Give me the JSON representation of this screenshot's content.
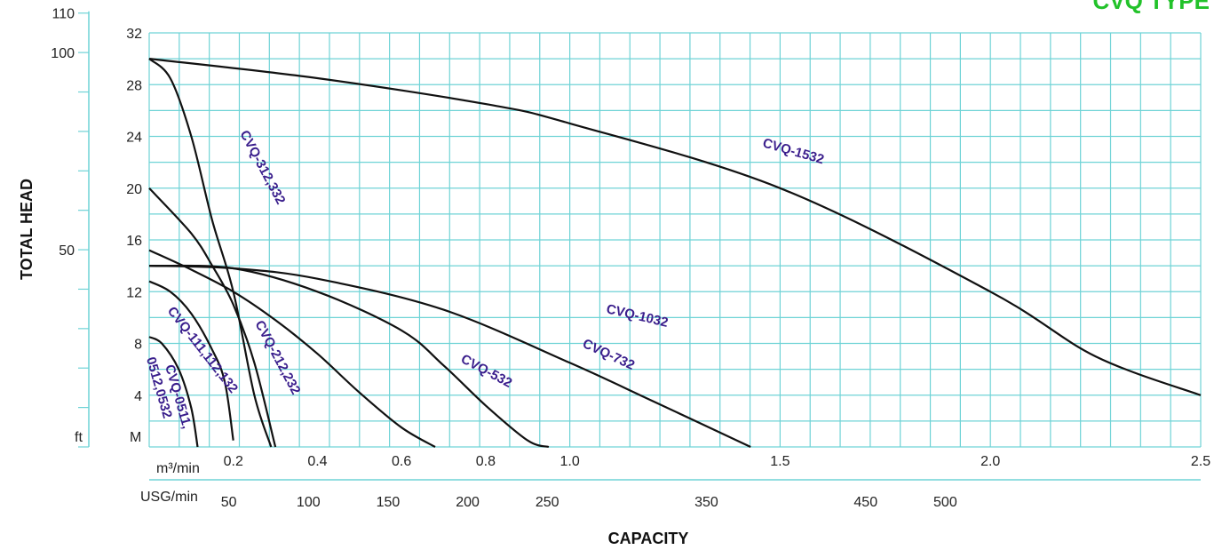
{
  "chart_data": {
    "type": "line",
    "title": "CVQ TYPE",
    "title_color": "#22c22a",
    "grid": true,
    "grid_color": "#6fd3d6",
    "curve_color": "#111111",
    "label_color": "#3a1e8c",
    "ylabel": "TOTAL HEAD",
    "xlabel": "CAPACITY",
    "x_unit_label": "m³/min",
    "x2_unit_label": "USG/min",
    "y_unit_label": "M",
    "y2_unit_label": "ft",
    "xlim": [
      0,
      2.5
    ],
    "ylim": [
      0,
      32
    ],
    "x_ticks": [
      {
        "value": 0.2,
        "label": "0.2"
      },
      {
        "value": 0.4,
        "label": "0.4"
      },
      {
        "value": 0.6,
        "label": "0.6"
      },
      {
        "value": 0.8,
        "label": "0.8"
      },
      {
        "value": 1.0,
        "label": "1.0"
      },
      {
        "value": 1.5,
        "label": "1.5"
      },
      {
        "value": 2.0,
        "label": "2.0"
      },
      {
        "value": 2.5,
        "label": "2.5"
      }
    ],
    "x2_ticks": [
      {
        "value": 50,
        "label": "50"
      },
      {
        "value": 100,
        "label": "100"
      },
      {
        "value": 150,
        "label": "150"
      },
      {
        "value": 200,
        "label": "200"
      },
      {
        "value": 250,
        "label": "250"
      },
      {
        "value": 350,
        "label": "350"
      },
      {
        "value": 450,
        "label": "450"
      },
      {
        "value": 500,
        "label": "500"
      }
    ],
    "y_ticks": [
      {
        "value": 4,
        "label": "4"
      },
      {
        "value": 8,
        "label": "8"
      },
      {
        "value": 12,
        "label": "12"
      },
      {
        "value": 16,
        "label": "16"
      },
      {
        "value": 20,
        "label": "20"
      },
      {
        "value": 24,
        "label": "24"
      },
      {
        "value": 28,
        "label": "28"
      },
      {
        "value": 32,
        "label": "32"
      }
    ],
    "y2_ticks": [
      {
        "value": 50,
        "label": "50"
      },
      {
        "value": 100,
        "label": "100"
      },
      {
        "value": 110,
        "label": "110"
      }
    ],
    "series": [
      {
        "name": "CVQ-0511, 0512,0532",
        "points": [
          [
            0,
            8.5
          ],
          [
            0.03,
            8
          ],
          [
            0.07,
            6
          ],
          [
            0.1,
            3
          ],
          [
            0.115,
            0
          ]
        ]
      },
      {
        "name": "CVQ-111,112,132",
        "points": [
          [
            0,
            12.8
          ],
          [
            0.05,
            12
          ],
          [
            0.1,
            10.3
          ],
          [
            0.15,
            7.5
          ],
          [
            0.18,
            5
          ],
          [
            0.2,
            0.5
          ]
        ]
      },
      {
        "name": "CVQ-212,232",
        "points": [
          [
            0,
            20
          ],
          [
            0.1,
            16.5
          ],
          [
            0.15,
            14
          ],
          [
            0.2,
            11
          ],
          [
            0.25,
            6.5
          ],
          [
            0.3,
            0
          ]
        ]
      },
      {
        "name": "CVQ-312,332",
        "points": [
          [
            0,
            30
          ],
          [
            0.05,
            28.5
          ],
          [
            0.1,
            24
          ],
          [
            0.15,
            17.5
          ],
          [
            0.2,
            12
          ],
          [
            0.25,
            4
          ],
          [
            0.29,
            0
          ]
        ]
      },
      {
        "name": "CVQ-532",
        "points": [
          [
            0,
            15.2
          ],
          [
            0.1,
            13.7
          ],
          [
            0.2,
            12
          ],
          [
            0.3,
            9.8
          ],
          [
            0.4,
            7.2
          ],
          [
            0.5,
            4.2
          ],
          [
            0.6,
            1.5
          ],
          [
            0.68,
            0
          ]
        ]
      },
      {
        "name": "CVQ-732",
        "points": [
          [
            0,
            14
          ],
          [
            0.2,
            13.8
          ],
          [
            0.4,
            12
          ],
          [
            0.6,
            9
          ],
          [
            0.7,
            6.3
          ],
          [
            0.8,
            3.2
          ],
          [
            0.9,
            0.5
          ],
          [
            0.95,
            0
          ]
        ]
      },
      {
        "name": "CVQ-1032",
        "points": [
          [
            0,
            14
          ],
          [
            0.2,
            13.8
          ],
          [
            0.4,
            13
          ],
          [
            0.7,
            10.6
          ],
          [
            1.0,
            6.5
          ],
          [
            1.2,
            3.5
          ],
          [
            1.43,
            0
          ]
        ]
      },
      {
        "name": "CVQ-1532",
        "points": [
          [
            0,
            30
          ],
          [
            0.4,
            28.5
          ],
          [
            0.8,
            26.5
          ],
          [
            1.0,
            25
          ],
          [
            1.5,
            20
          ],
          [
            2.0,
            12
          ],
          [
            2.25,
            7
          ],
          [
            2.5,
            4
          ]
        ]
      }
    ]
  }
}
